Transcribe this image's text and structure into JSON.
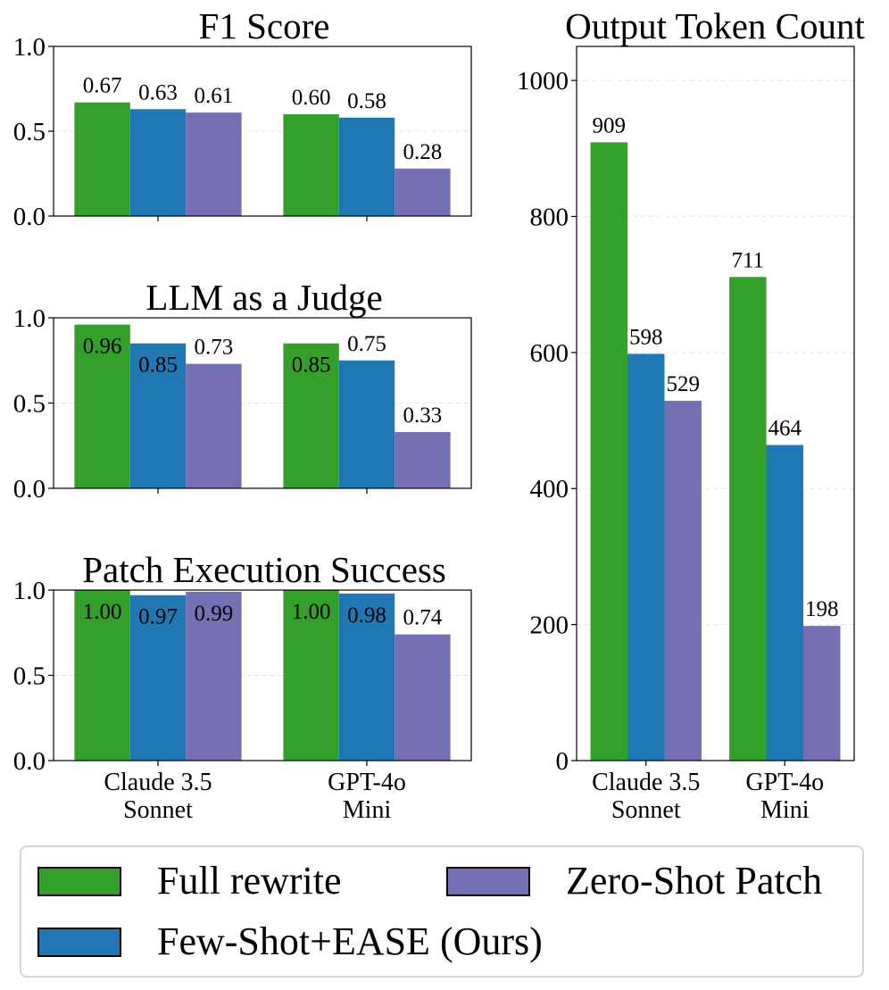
{
  "colors": {
    "full_rewrite": "#33a02c",
    "few_shot_ease": "#1f78b4",
    "zero_shot_patch": "#7570b3",
    "grid": "#e4e4e4"
  },
  "legend": {
    "items": [
      {
        "label": "Full rewrite",
        "color": "#33a02c"
      },
      {
        "label": "Zero-Shot Patch",
        "color": "#7570b3"
      },
      {
        "label": "Few-Shot+EASE (Ours)",
        "color": "#1f78b4"
      }
    ]
  },
  "chart_data": [
    {
      "type": "bar",
      "title": "F1 Score",
      "categories": [
        "Claude 3.5\nSonnet",
        "GPT-4o\nMini"
      ],
      "series": [
        {
          "name": "Full rewrite",
          "values": [
            0.67,
            0.6
          ],
          "labels": [
            "0.67",
            "0.60"
          ]
        },
        {
          "name": "Few-Shot+EASE (Ours)",
          "values": [
            0.63,
            0.58
          ],
          "labels": [
            "0.63",
            "0.58"
          ]
        },
        {
          "name": "Zero-Shot Patch",
          "values": [
            0.61,
            0.28
          ],
          "labels": [
            "0.61",
            "0.28"
          ]
        }
      ],
      "ylim": [
        0,
        1.0
      ],
      "yticks": [
        0,
        0.5,
        1.0
      ],
      "ytick_labels": [
        "0.0",
        "0.5",
        "1.0"
      ],
      "grid": true,
      "show_category_labels": false
    },
    {
      "type": "bar",
      "title": "LLM as a Judge",
      "categories": [
        "Claude 3.5\nSonnet",
        "GPT-4o\nMini"
      ],
      "series": [
        {
          "name": "Full rewrite",
          "values": [
            0.96,
            0.85
          ],
          "labels": [
            "0.96",
            "0.85"
          ]
        },
        {
          "name": "Few-Shot+EASE (Ours)",
          "values": [
            0.85,
            0.75
          ],
          "labels": [
            "0.85",
            "0.75"
          ]
        },
        {
          "name": "Zero-Shot Patch",
          "values": [
            0.73,
            0.33
          ],
          "labels": [
            "0.73",
            "0.33"
          ]
        }
      ],
      "ylim": [
        0,
        1.0
      ],
      "yticks": [
        0,
        0.5,
        1.0
      ],
      "ytick_labels": [
        "0.0",
        "0.5",
        "1.0"
      ],
      "grid": true,
      "show_category_labels": false
    },
    {
      "type": "bar",
      "title": "Patch Execution Success",
      "categories": [
        "Claude 3.5\nSonnet",
        "GPT-4o\nMini"
      ],
      "series": [
        {
          "name": "Full rewrite",
          "values": [
            1.0,
            1.0
          ],
          "labels": [
            "1.00",
            "1.00"
          ]
        },
        {
          "name": "Few-Shot+EASE (Ours)",
          "values": [
            0.97,
            0.98
          ],
          "labels": [
            "0.97",
            "0.98"
          ]
        },
        {
          "name": "Zero-Shot Patch",
          "values": [
            0.99,
            0.74
          ],
          "labels": [
            "0.99",
            "0.74"
          ]
        }
      ],
      "ylim": [
        0,
        1.0
      ],
      "yticks": [
        0,
        0.5,
        1.0
      ],
      "ytick_labels": [
        "0.0",
        "0.5",
        "1.0"
      ],
      "grid": true,
      "show_category_labels": true
    },
    {
      "type": "bar",
      "title": "Output Token Count",
      "categories": [
        "Claude 3.5\nSonnet",
        "GPT-4o\nMini"
      ],
      "series": [
        {
          "name": "Full rewrite",
          "values": [
            909,
            711
          ],
          "labels": [
            "909",
            "711"
          ]
        },
        {
          "name": "Few-Shot+EASE (Ours)",
          "values": [
            598,
            464
          ],
          "labels": [
            "598",
            "464"
          ]
        },
        {
          "name": "Zero-Shot Patch",
          "values": [
            529,
            198
          ],
          "labels": [
            "529",
            "198"
          ]
        }
      ],
      "ylim": [
        0,
        1050
      ],
      "yticks": [
        0,
        200,
        400,
        600,
        800,
        1000
      ],
      "ytick_labels": [
        "0",
        "200",
        "400",
        "600",
        "800",
        "1000"
      ],
      "grid": true,
      "show_category_labels": true
    }
  ]
}
